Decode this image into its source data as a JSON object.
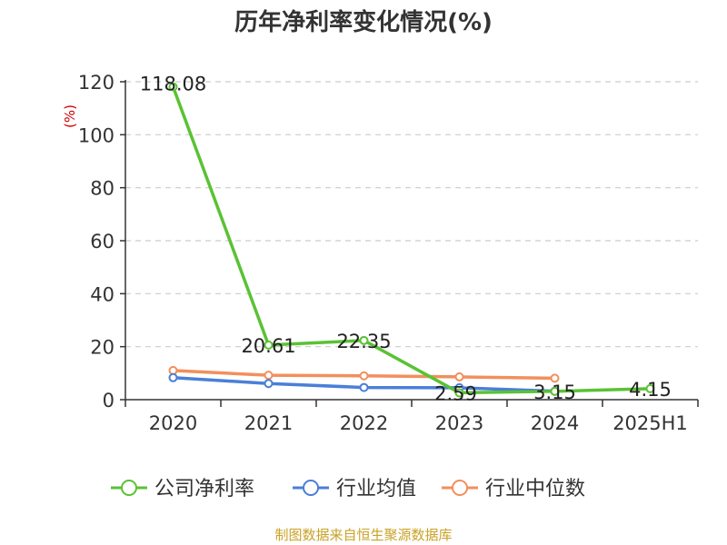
{
  "chart_data": {
    "type": "line",
    "title": "历年净利率变化情况(%)",
    "ylabel": "(%)",
    "ylim": [
      0,
      120
    ],
    "yticks": [
      0,
      20,
      40,
      60,
      80,
      100,
      120
    ],
    "grid": true,
    "legend_position": "bottom",
    "categories": [
      "2020",
      "2021",
      "2022",
      "2023",
      "2024",
      "2025H1"
    ],
    "series": [
      {
        "name": "公司净利率",
        "color": "#5ac234",
        "values": [
          118.08,
          20.61,
          22.35,
          2.59,
          3.15,
          4.15
        ],
        "labels": [
          "118.08",
          "20.61",
          "22.35",
          "2.59",
          "3.15",
          "4.15"
        ]
      },
      {
        "name": "行业均值",
        "color": "#4a7fd8",
        "values": [
          8.3,
          6.1,
          4.6,
          4.5,
          3.2,
          null
        ]
      },
      {
        "name": "行业中位数",
        "color": "#f28f5c",
        "values": [
          11.0,
          9.2,
          9.0,
          8.6,
          8.1,
          null
        ]
      }
    ]
  },
  "source": "制图数据来自恒生聚源数据库"
}
